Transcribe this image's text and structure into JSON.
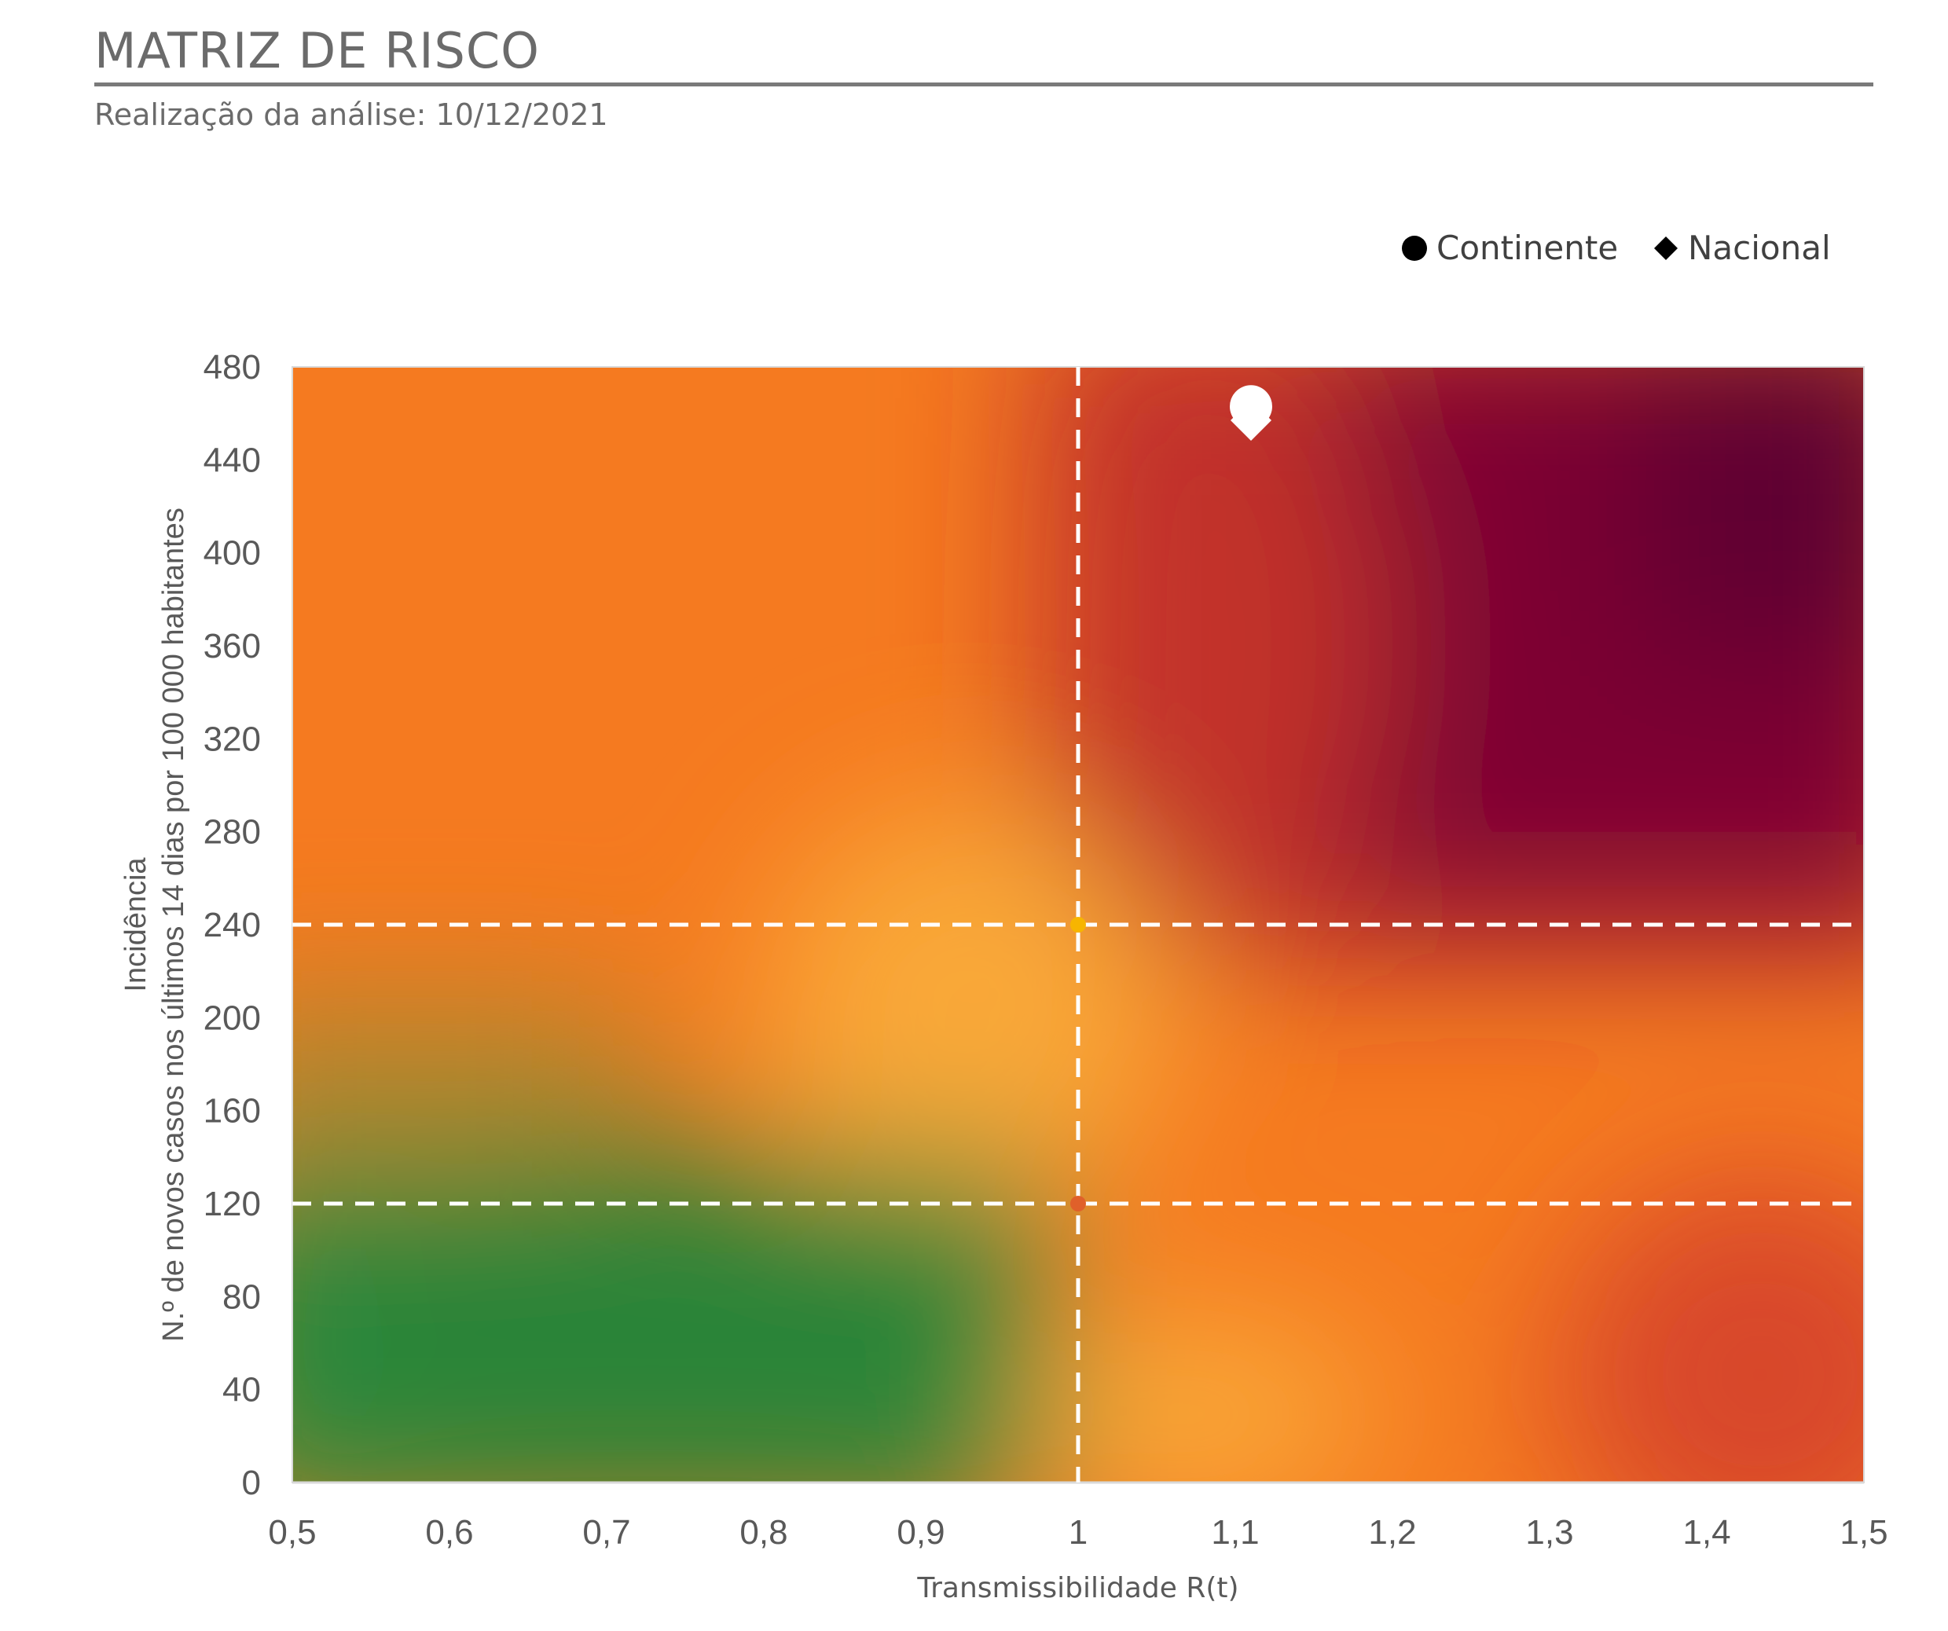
{
  "header": {
    "title": "MATRIZ DE RISCO",
    "subtitle": "Realização da análise: 10/12/2021"
  },
  "chart_data": {
    "type": "scatter",
    "title": "",
    "xlabel": "Transmissibilidade R(t)",
    "ylabel_line1": "Incidência",
    "ylabel_line2": "N.º de novos casos nos últimos 14 dias por 100 000 habitantes",
    "xlim": [
      0.5,
      1.5
    ],
    "ylim": [
      0,
      480
    ],
    "x_ticks": [
      "0,5",
      "0,6",
      "0,7",
      "0,8",
      "0,9",
      "1",
      "1,1",
      "1,2",
      "1,3",
      "1,4",
      "1,5"
    ],
    "y_ticks": [
      "0",
      "40",
      "80",
      "120",
      "160",
      "200",
      "240",
      "280",
      "320",
      "360",
      "400",
      "440",
      "480"
    ],
    "reference_lines": {
      "vertical_x": [
        1
      ],
      "horizontal_y": [
        120,
        240
      ]
    },
    "background": "risk gradient: green (low R, low incidence) to orange, red and dark purple (high R, high incidence)",
    "series": [
      {
        "name": "Continente",
        "marker": "circle",
        "x": [
          1.11
        ],
        "y": [
          463
        ]
      },
      {
        "name": "Nacional",
        "marker": "diamond",
        "x": [
          1.11
        ],
        "y": [
          457
        ]
      }
    ],
    "reference_markers": [
      {
        "x": 1,
        "y": 240,
        "color": "#f7b500"
      },
      {
        "x": 1,
        "y": 120,
        "color": "#e0602a"
      }
    ],
    "legend_position": "top-right",
    "colors": {
      "low": "#2d8a3e",
      "moderate": "#f9a838",
      "high": "#f57a20",
      "very_high": "#b8252f",
      "extreme": "#5e0033",
      "markers": "#ffffff",
      "legend_markers": "#000000"
    }
  }
}
